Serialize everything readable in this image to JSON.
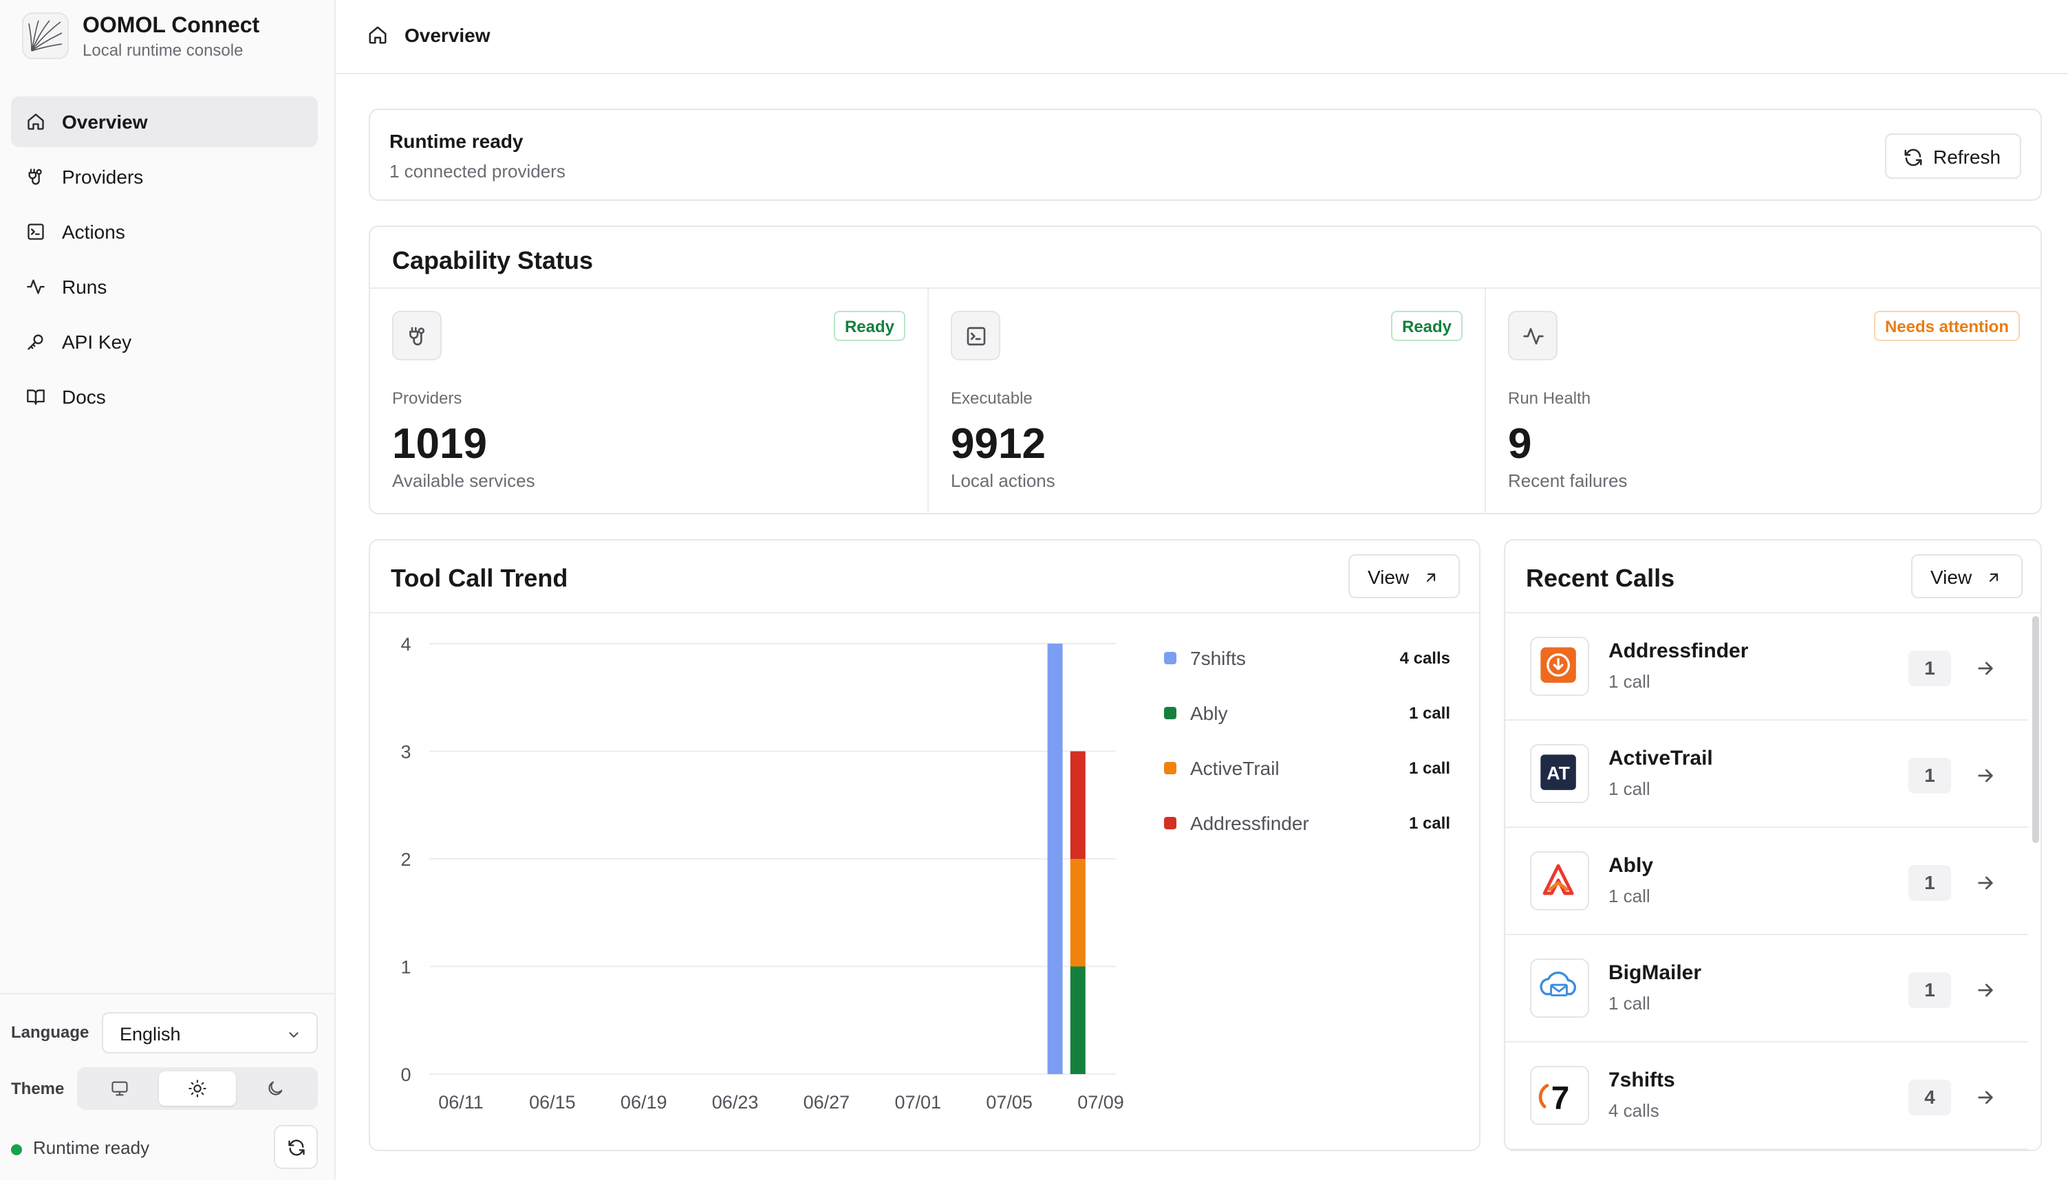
{
  "app": {
    "title": "OOMOL Connect",
    "subtitle": "Local runtime console"
  },
  "sidebar": {
    "items": [
      {
        "label": "Overview",
        "icon": "home-icon",
        "active": true
      },
      {
        "label": "Providers",
        "icon": "plug-icon"
      },
      {
        "label": "Actions",
        "icon": "terminal-icon"
      },
      {
        "label": "Runs",
        "icon": "activity-icon"
      },
      {
        "label": "API Key",
        "icon": "key-icon"
      },
      {
        "label": "Docs",
        "icon": "book-icon"
      }
    ],
    "language_label": "Language",
    "language_value": "English",
    "theme_label": "Theme",
    "theme_options": [
      "monitor-icon",
      "sun-icon",
      "moon-icon"
    ],
    "theme_selected": "sun-icon",
    "status_text": "Runtime ready",
    "status_color": "#16a34a"
  },
  "header": {
    "title": "Overview"
  },
  "runtime": {
    "title": "Runtime ready",
    "subtitle": "1 connected providers",
    "refresh_label": "Refresh"
  },
  "capability": {
    "title": "Capability Status",
    "cards": [
      {
        "icon": "plug-icon",
        "badge": "Ready",
        "label": "Providers",
        "value": "1019",
        "sub": "Available services"
      },
      {
        "icon": "terminal-icon",
        "badge": "Ready",
        "label": "Executable",
        "value": "9912",
        "sub": "Local actions"
      },
      {
        "icon": "activity-icon",
        "badge": "Needs attention",
        "label": "Run Health",
        "value": "9",
        "sub": "Recent failures"
      }
    ]
  },
  "trend": {
    "title": "Tool Call Trend",
    "view_label": "View",
    "legend": [
      {
        "name": "7shifts",
        "value": "4 calls",
        "color": "#7c9ef2"
      },
      {
        "name": "Ably",
        "value": "1 call",
        "color": "#15803d"
      },
      {
        "name": "ActiveTrail",
        "value": "1 call",
        "color": "#f0830e"
      },
      {
        "name": "Addressfinder",
        "value": "1 call",
        "color": "#d42f22"
      }
    ]
  },
  "chart_data": {
    "type": "bar",
    "stacked": true,
    "x": [
      "06/11",
      "06/15",
      "06/19",
      "06/23",
      "06/27",
      "07/01",
      "07/05",
      "07/09"
    ],
    "ylim": [
      0,
      4
    ],
    "yticks": [
      0,
      1,
      2,
      3,
      4
    ],
    "grid": true,
    "legend_position": "right",
    "bars": [
      {
        "date": "07/07",
        "segments": [
          {
            "series": "7shifts",
            "value": 4
          }
        ]
      },
      {
        "date": "07/08",
        "segments": [
          {
            "series": "Ably",
            "value": 1
          },
          {
            "series": "ActiveTrail",
            "value": 1
          },
          {
            "series": "Addressfinder",
            "value": 1
          }
        ]
      }
    ]
  },
  "recent": {
    "title": "Recent Calls",
    "view_label": "View",
    "items": [
      {
        "name": "Addressfinder",
        "sub": "1 call",
        "count": "1",
        "logo": "addressfinder-logo"
      },
      {
        "name": "ActiveTrail",
        "sub": "1 call",
        "count": "1",
        "logo": "activetrail-logo",
        "logo_text": "AT"
      },
      {
        "name": "Ably",
        "sub": "1 call",
        "count": "1",
        "logo": "ably-logo"
      },
      {
        "name": "BigMailer",
        "sub": "1 call",
        "count": "1",
        "logo": "bigmailer-logo"
      },
      {
        "name": "7shifts",
        "sub": "4 calls",
        "count": "4",
        "logo": "7shifts-logo",
        "logo_text": "7"
      }
    ]
  }
}
